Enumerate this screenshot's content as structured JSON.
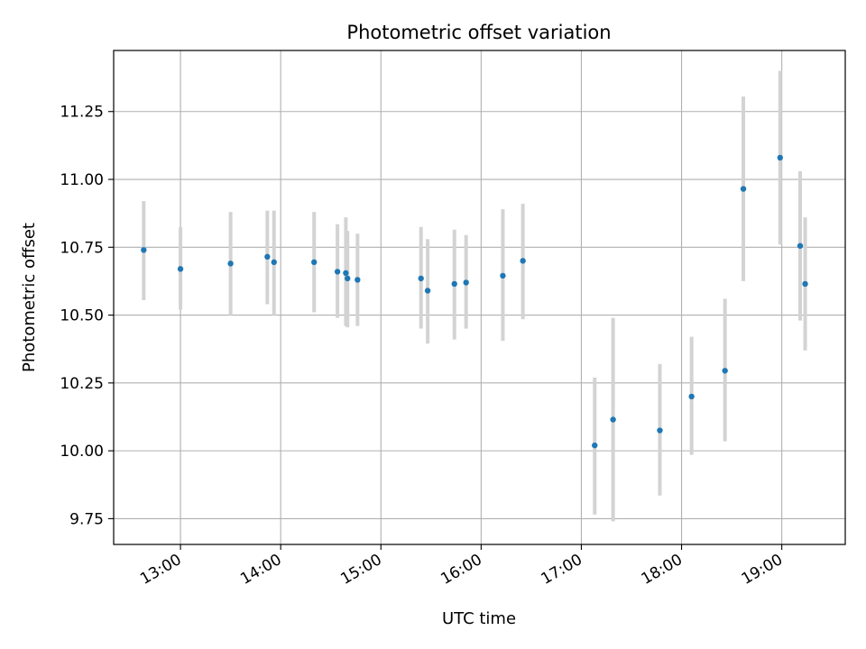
{
  "chart_data": {
    "type": "scatter",
    "title": "Photometric offset variation",
    "xlabel": "UTC time",
    "ylabel": "Photometric offset",
    "xlim": [
      "12:20",
      "19:38"
    ],
    "ylim": [
      9.655,
      11.475
    ],
    "grid": true,
    "x_ticks": [
      "13:00",
      "14:00",
      "15:00",
      "16:00",
      "17:00",
      "18:00",
      "19:00"
    ],
    "y_ticks": [
      "9.75",
      "10.00",
      "10.25",
      "10.50",
      "10.75",
      "11.00",
      "11.25"
    ],
    "point_color": "#1f77b4",
    "errorbar_color": "#d3d3d3",
    "points": [
      {
        "x": "12:38",
        "y": 10.74,
        "yerr": [
          10.555,
          10.92
        ]
      },
      {
        "x": "13:00",
        "y": 10.67,
        "yerr": [
          10.52,
          10.825
        ]
      },
      {
        "x": "13:30",
        "y": 10.69,
        "yerr": [
          10.5,
          10.88
        ]
      },
      {
        "x": "13:52",
        "y": 10.715,
        "yerr": [
          10.54,
          10.885
        ]
      },
      {
        "x": "13:56",
        "y": 10.695,
        "yerr": [
          10.5,
          10.885
        ]
      },
      {
        "x": "14:20",
        "y": 10.695,
        "yerr": [
          10.51,
          10.88
        ]
      },
      {
        "x": "14:34",
        "y": 10.66,
        "yerr": [
          10.49,
          10.835
        ]
      },
      {
        "x": "14:39",
        "y": 10.655,
        "yerr": [
          10.46,
          10.86
        ]
      },
      {
        "x": "14:40",
        "y": 10.635,
        "yerr": [
          10.455,
          10.81
        ]
      },
      {
        "x": "14:46",
        "y": 10.63,
        "yerr": [
          10.46,
          10.8
        ]
      },
      {
        "x": "15:24",
        "y": 10.635,
        "yerr": [
          10.45,
          10.825
        ]
      },
      {
        "x": "15:28",
        "y": 10.59,
        "yerr": [
          10.395,
          10.78
        ]
      },
      {
        "x": "15:44",
        "y": 10.615,
        "yerr": [
          10.41,
          10.815
        ]
      },
      {
        "x": "15:51",
        "y": 10.62,
        "yerr": [
          10.45,
          10.795
        ]
      },
      {
        "x": "16:13",
        "y": 10.645,
        "yerr": [
          10.405,
          10.89
        ]
      },
      {
        "x": "16:25",
        "y": 10.7,
        "yerr": [
          10.485,
          10.91
        ]
      },
      {
        "x": "17:08",
        "y": 10.02,
        "yerr": [
          9.765,
          10.27
        ]
      },
      {
        "x": "17:19",
        "y": 10.115,
        "yerr": [
          9.74,
          10.49
        ]
      },
      {
        "x": "17:47",
        "y": 10.075,
        "yerr": [
          9.835,
          10.32
        ]
      },
      {
        "x": "18:06",
        "y": 10.2,
        "yerr": [
          9.985,
          10.42
        ]
      },
      {
        "x": "18:26",
        "y": 10.295,
        "yerr": [
          10.035,
          10.56
        ]
      },
      {
        "x": "18:37",
        "y": 10.965,
        "yerr": [
          10.625,
          11.305
        ]
      },
      {
        "x": "18:59",
        "y": 11.08,
        "yerr": [
          10.76,
          11.4
        ]
      },
      {
        "x": "19:11",
        "y": 10.755,
        "yerr": [
          10.48,
          11.03
        ]
      },
      {
        "x": "19:14",
        "y": 10.615,
        "yerr": [
          10.37,
          10.86
        ]
      }
    ]
  }
}
